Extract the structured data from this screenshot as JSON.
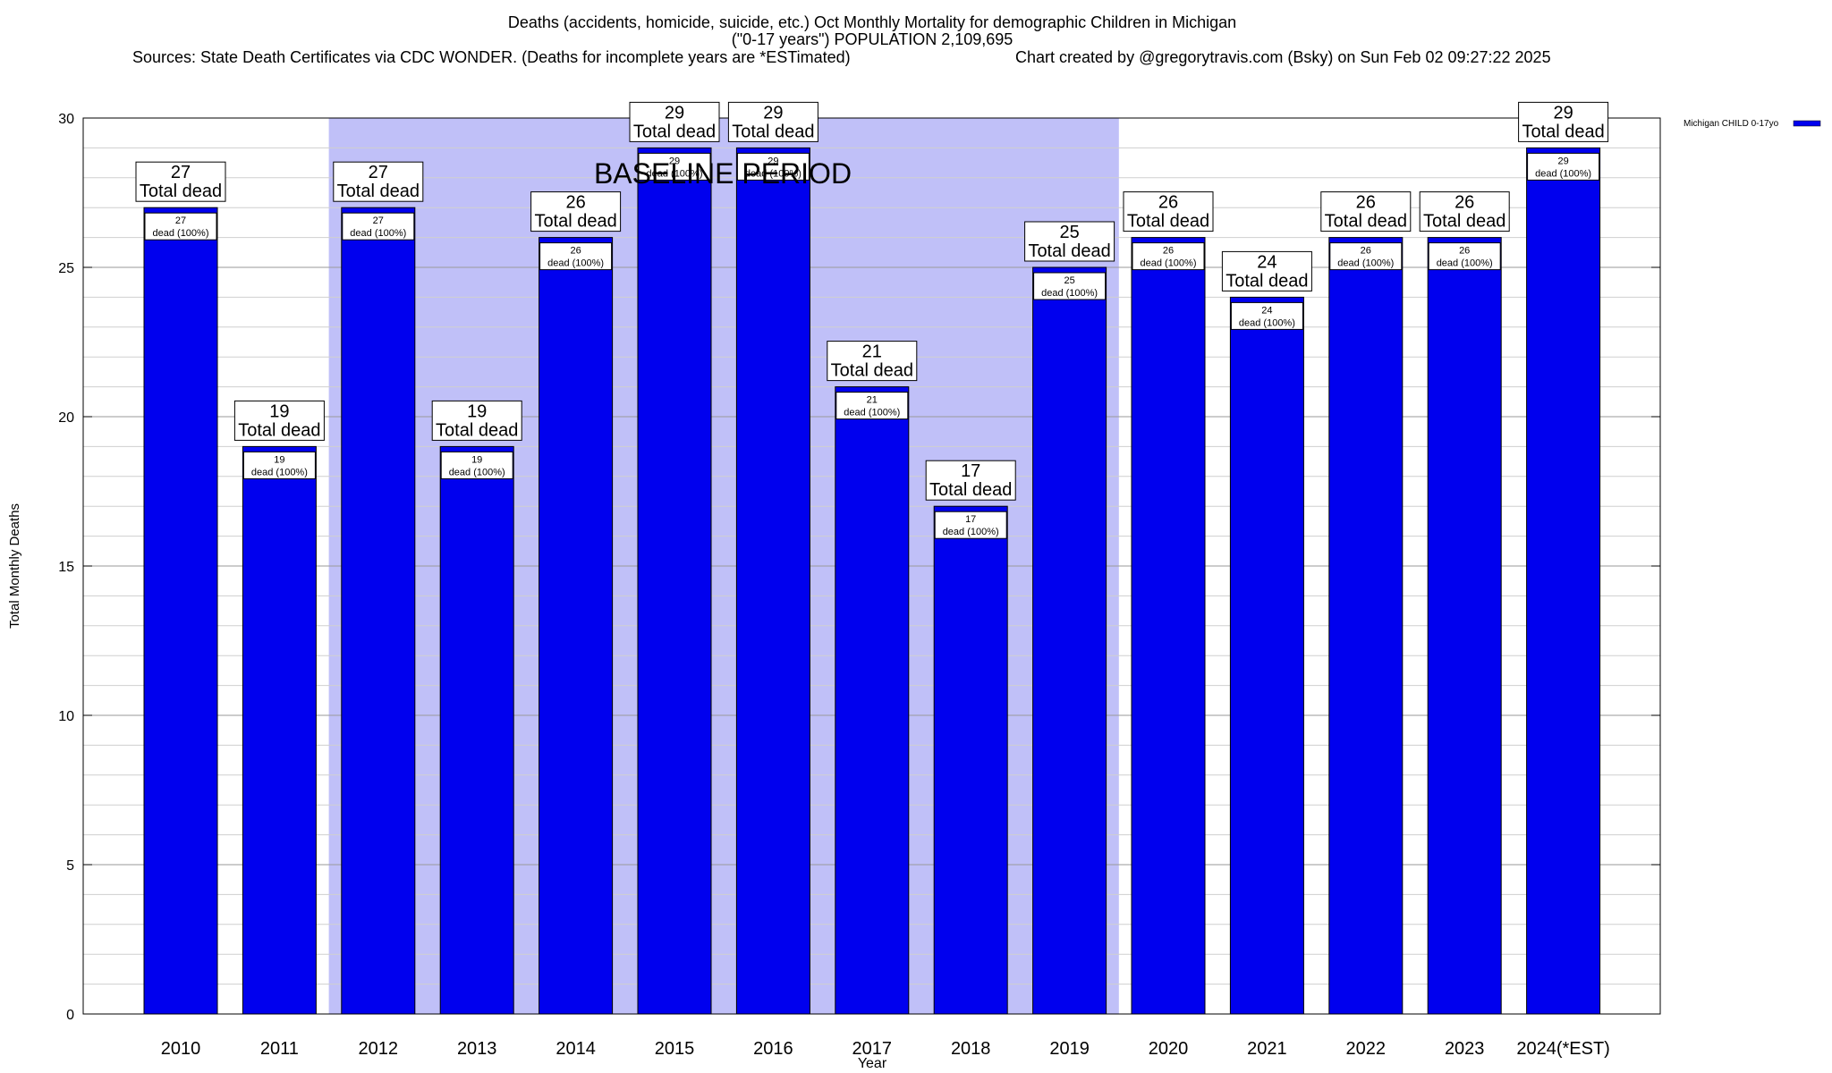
{
  "chart_data": {
    "type": "bar",
    "title_lines": [
      "Deaths (accidents, homicide, suicide, etc.) Oct Monthly Mortality for demographic Children in Michigan",
      "(\"0-17 years\") POPULATION 2,109,695"
    ],
    "sources": "Sources: State Death Certificates via CDC WONDER. (Deaths for incomplete years are *ESTimated)",
    "credit": "Chart created by @gregorytravis.com (Bsky) on Sun Feb 02 09:27:22 2025",
    "xlabel": "Year",
    "ylabel": "Total Monthly Deaths",
    "ylim": [
      0,
      30
    ],
    "yticks": [
      0,
      5,
      10,
      15,
      20,
      25,
      30
    ],
    "categories": [
      "2010",
      "2011",
      "2012",
      "2013",
      "2014",
      "2015",
      "2016",
      "2017",
      "2018",
      "2019",
      "2020",
      "2021",
      "2022",
      "2023",
      "2024(*EST)"
    ],
    "series": [
      {
        "name": "Michigan CHILD 0-17yo",
        "color": "#0000ee",
        "values": [
          27,
          19,
          27,
          19,
          26,
          29,
          29,
          21,
          17,
          25,
          26,
          24,
          26,
          26,
          29
        ]
      }
    ],
    "top_label_suffix": "Total dead",
    "inner_label_suffix": "dead (100%)",
    "baseline": {
      "label": "BASELINE PERIOD",
      "start": "2012",
      "end": "2019",
      "color": "#c0c0f8"
    },
    "grid": true,
    "legend_position": "top-right"
  }
}
